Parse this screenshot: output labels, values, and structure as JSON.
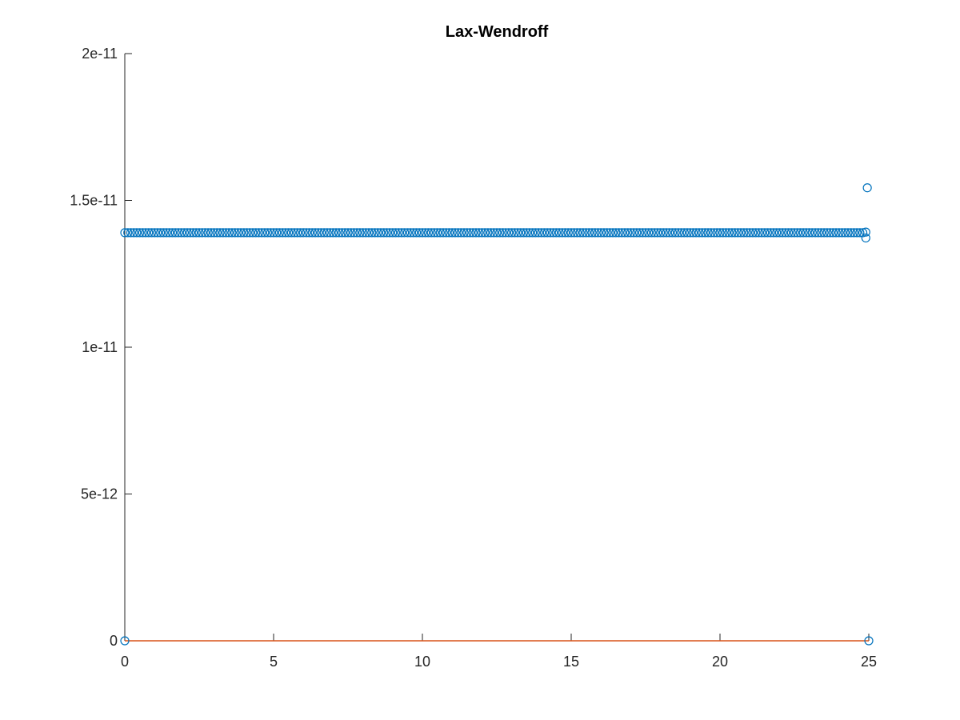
{
  "chart_data": {
    "type": "scatter",
    "title": "Lax-Wendroff",
    "xlabel": "",
    "ylabel": "",
    "xlim": [
      0,
      25
    ],
    "ylim": [
      0,
      2e-11
    ],
    "grid": false,
    "x_ticks": [
      0,
      5,
      10,
      15,
      20,
      25
    ],
    "x_tick_labels": [
      "0",
      "5",
      "10",
      "15",
      "20",
      "25"
    ],
    "y_ticks": [
      0,
      5e-12,
      1e-11,
      1.5e-11,
      2e-11
    ],
    "y_tick_labels": [
      "0",
      "5e-12",
      "1e-11",
      "1.5e-11",
      "2e-11"
    ],
    "series": [
      {
        "marker": "circle",
        "color": "#0072bd",
        "base_range": [
          0.1,
          24.8
        ],
        "base_step": 0.1,
        "base_value": 1.39e-11,
        "extra_points": [
          {
            "x": 0,
            "y": 0
          },
          {
            "x": 0.0,
            "y": 1.39e-11
          },
          {
            "x": 24.9,
            "y": 1.392e-11
          },
          {
            "x": 24.9,
            "y": 1.372e-11
          },
          {
            "x": 24.95,
            "y": 1.543e-11
          },
          {
            "x": 25,
            "y": 0
          }
        ]
      },
      {
        "marker": "line",
        "color": "#d95319",
        "x": [
          0,
          25
        ],
        "y": [
          0,
          0
        ]
      }
    ]
  }
}
